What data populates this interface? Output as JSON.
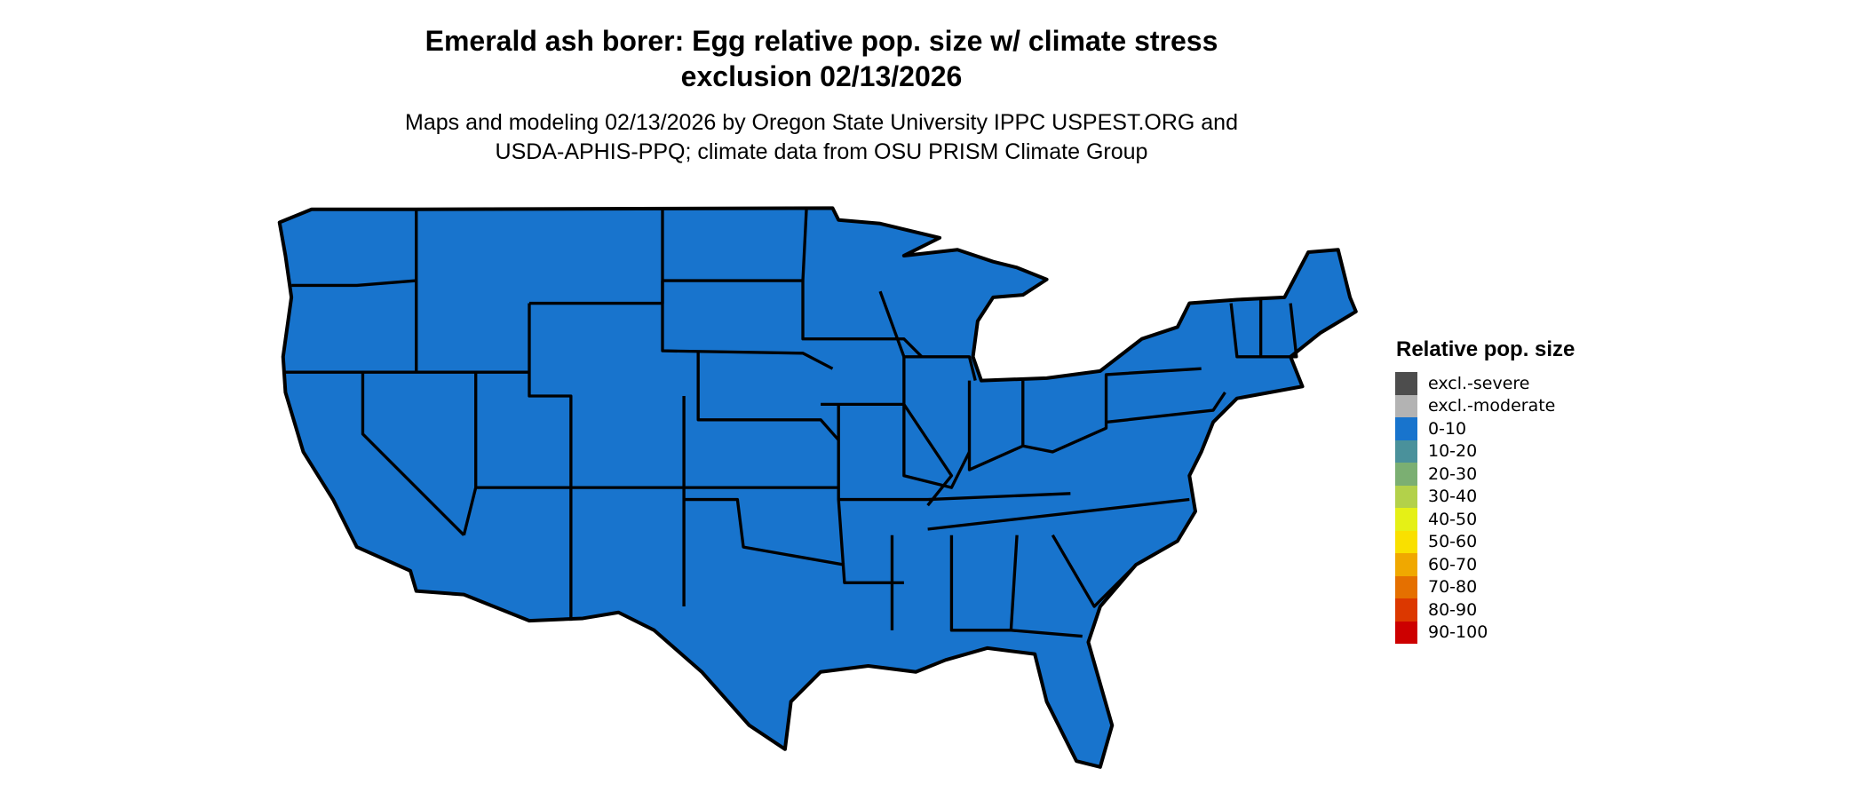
{
  "title_line1": "Emerald ash borer: Egg relative pop. size w/ climate stress",
  "title_line2": "exclusion 02/13/2026",
  "subtitle_line1": "Maps and modeling 02/13/2026 by Oregon State University IPPC USPEST.ORG and",
  "subtitle_line2": "USDA-APHIS-PPQ; climate data from OSU PRISM Climate Group",
  "map": {
    "region": "Contiguous United States",
    "fill_class": "0-10",
    "fill_color": "#1874CD",
    "border_color": "#000000"
  },
  "legend": {
    "title": "Relative pop. size",
    "items": [
      {
        "label": "excl.-severe",
        "color": "#4D4D4D"
      },
      {
        "label": "excl.-moderate",
        "color": "#B3B3B3"
      },
      {
        "label": "0-10",
        "color": "#1874CD"
      },
      {
        "label": "10-20",
        "color": "#4A919B"
      },
      {
        "label": "20-30",
        "color": "#7BAF72"
      },
      {
        "label": "30-40",
        "color": "#B3D14A"
      },
      {
        "label": "40-50",
        "color": "#E5F016"
      },
      {
        "label": "50-60",
        "color": "#F9E000"
      },
      {
        "label": "60-70",
        "color": "#F0A800"
      },
      {
        "label": "70-80",
        "color": "#E57000"
      },
      {
        "label": "80-90",
        "color": "#DC3800"
      },
      {
        "label": "90-100",
        "color": "#CD0000"
      }
    ]
  }
}
